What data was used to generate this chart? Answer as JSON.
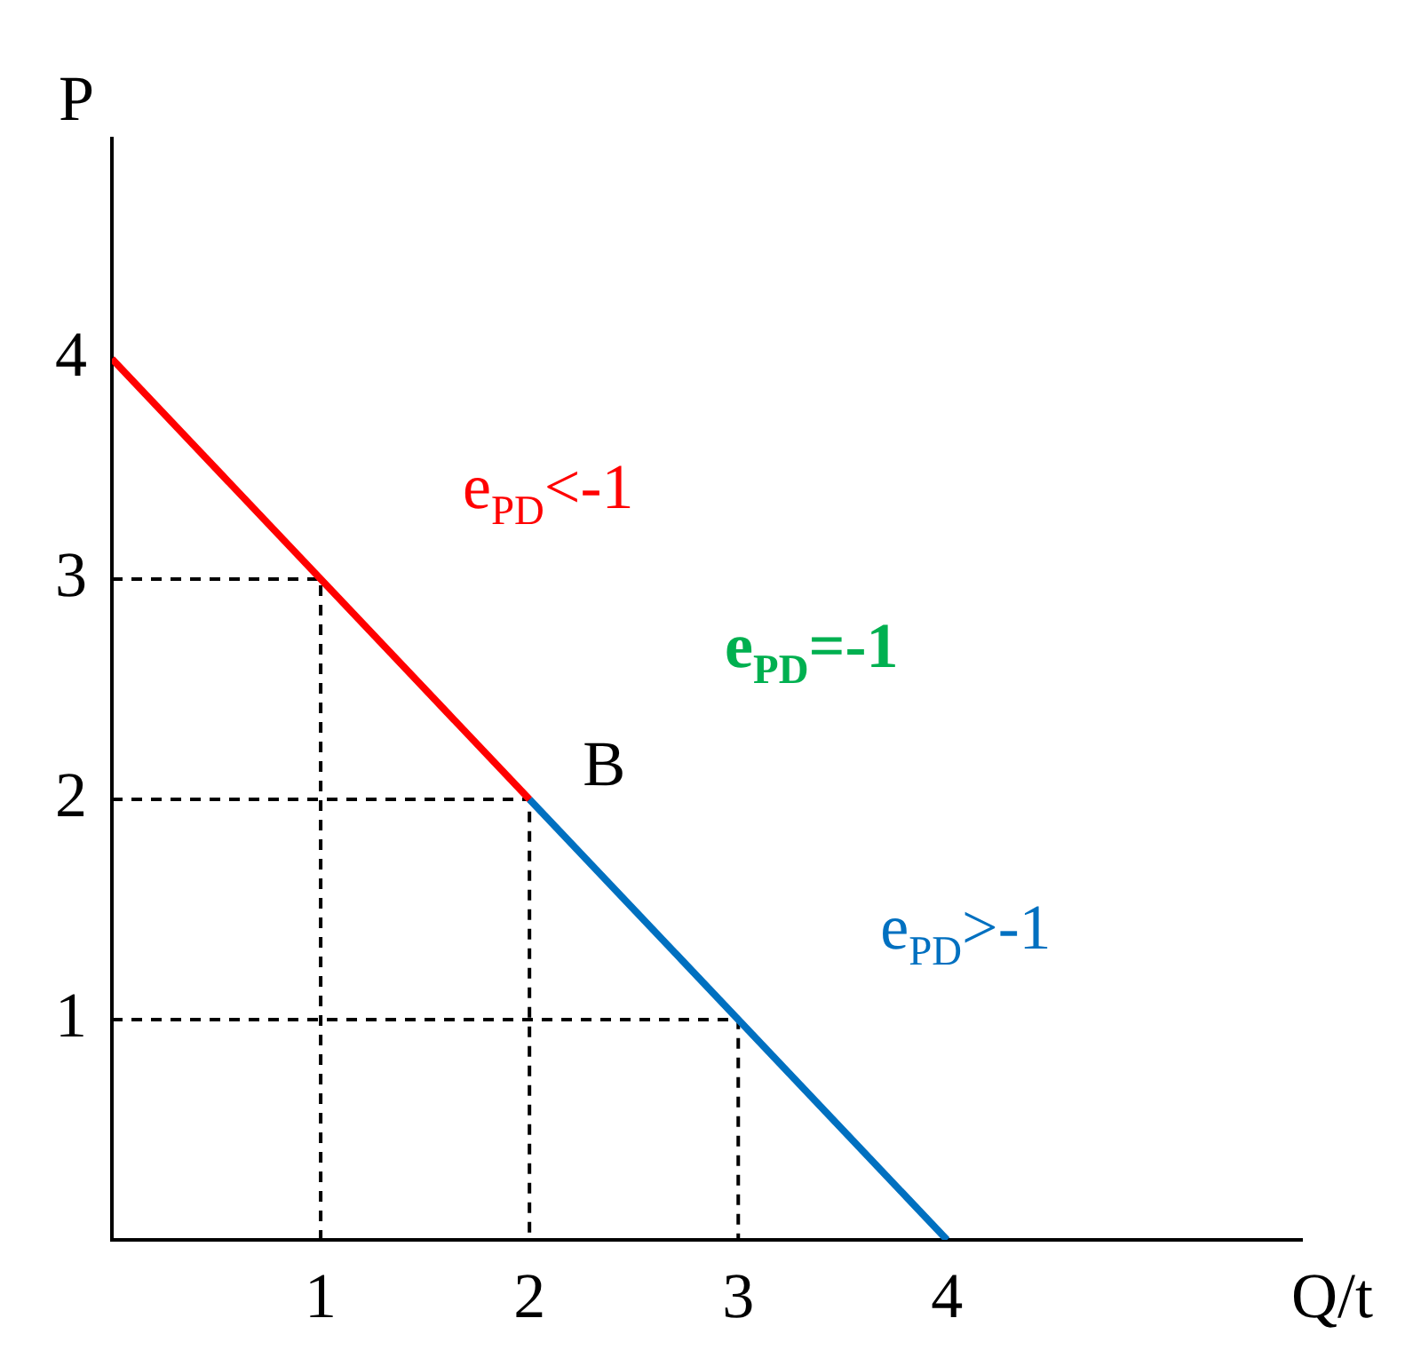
{
  "chart_data": {
    "type": "line",
    "xlabel": "Q/t",
    "ylabel": "P",
    "xlim": [
      0,
      5.7
    ],
    "ylim": [
      0,
      5
    ],
    "xticks": [
      1,
      2,
      3,
      4
    ],
    "yticks": [
      1,
      2,
      3,
      4
    ],
    "grid": false,
    "legend": false,
    "marker": "none",
    "series": [
      {
        "name": "e$_{PD}$<-1",
        "color": "#ff0000",
        "x": [
          0,
          2
        ],
        "values": [
          4,
          2
        ]
      },
      {
        "name": "e$_{PD}$>-1",
        "color": "#0070c0",
        "x": [
          2,
          4
        ],
        "values": [
          2,
          0
        ]
      },
      {
        "color": "#000000",
        "line_style": "dashed",
        "x": [
          0,
          1,
          1
        ],
        "values": [
          3,
          3,
          0
        ]
      },
      {
        "color": "#000000",
        "line_style": "dashed",
        "x": [
          0,
          2,
          2
        ],
        "values": [
          2,
          2,
          0
        ]
      },
      {
        "color": "#000000",
        "line_style": "dashed",
        "x": [
          0,
          3,
          3
        ],
        "values": [
          1,
          1,
          0
        ]
      }
    ],
    "annotations": [
      {
        "text": "B",
        "x": 2,
        "y": 2
      },
      "e$_{PD}$=-1"
    ]
  }
}
